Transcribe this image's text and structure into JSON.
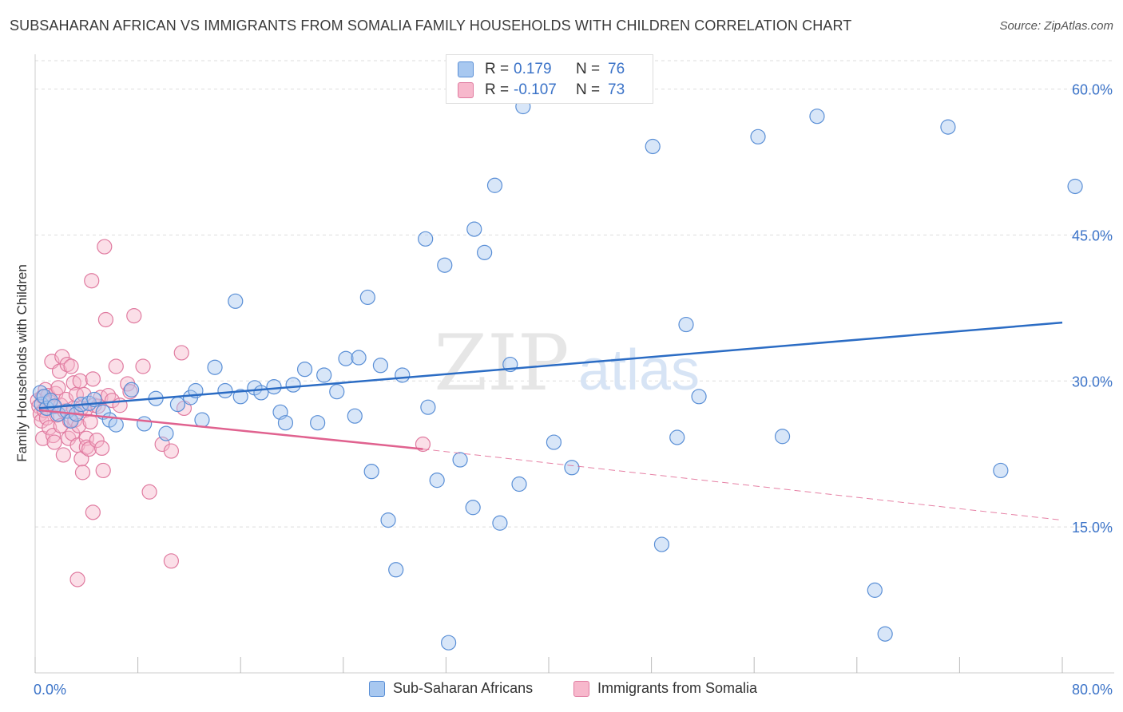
{
  "title": "SUBSAHARAN AFRICAN VS IMMIGRANTS FROM SOMALIA FAMILY HOUSEHOLDS WITH CHILDREN CORRELATION CHART",
  "source": "Source: ZipAtlas.com",
  "watermark": {
    "zip": "ZIP",
    "atlas": "atlas"
  },
  "colors": {
    "blue_fill": "#a8c8f0",
    "blue_stroke": "#5a8fd6",
    "blue_line": "#2b6cc4",
    "pink_fill": "#f7b8cc",
    "pink_stroke": "#e07ba0",
    "pink_line": "#e0628f",
    "accent_text": "#3b73c8"
  },
  "legend_top": {
    "rows": [
      {
        "r_label": "R =",
        "r_value": "0.179",
        "n_label": "N =",
        "n_value": "76"
      },
      {
        "r_label": "R =",
        "r_value": "-0.107",
        "n_label": "N =",
        "n_value": "73"
      }
    ]
  },
  "legend_bottom": {
    "series_a": "Sub-Saharan Africans",
    "series_b": "Immigrants from Somalia"
  },
  "chart_data": {
    "type": "scatter",
    "title": "SUBSAHARAN AFRICAN VS IMMIGRANTS FROM SOMALIA FAMILY HOUSEHOLDS WITH CHILDREN CORRELATION CHART",
    "xlabel": "",
    "ylabel": "Family Households with Children",
    "xlim": [
      0,
      80
    ],
    "ylim": [
      0,
      63
    ],
    "x_tick_labels": [
      "0.0%",
      "80.0%"
    ],
    "y_ticks": [
      15,
      30,
      45,
      60
    ],
    "y_tick_labels": [
      "15.0%",
      "30.0%",
      "45.0%",
      "60.0%"
    ],
    "grid": true,
    "series": [
      {
        "name": "Sub-Saharan Africans",
        "color": "#5a8fd6",
        "trend": {
          "x": [
            0.3,
            80
          ],
          "y": [
            27.2,
            36.0
          ]
        },
        "points": [
          [
            0.4,
            28.8
          ],
          [
            0.5,
            27.6
          ],
          [
            0.7,
            28.4
          ],
          [
            0.9,
            27.2
          ],
          [
            1.2,
            28.0
          ],
          [
            1.5,
            27.4
          ],
          [
            1.8,
            26.6
          ],
          [
            2.5,
            26.9
          ],
          [
            2.8,
            25.9
          ],
          [
            3.2,
            26.6
          ],
          [
            3.6,
            27.6
          ],
          [
            4.2,
            27.7
          ],
          [
            4.6,
            28.1
          ],
          [
            5.3,
            26.8
          ],
          [
            5.8,
            26.0
          ],
          [
            6.3,
            25.5
          ],
          [
            7.5,
            29.1
          ],
          [
            8.5,
            25.6
          ],
          [
            9.4,
            28.2
          ],
          [
            10.2,
            24.6
          ],
          [
            11.1,
            27.6
          ],
          [
            12.1,
            28.3
          ],
          [
            12.5,
            29.0
          ],
          [
            13.0,
            26.0
          ],
          [
            14.0,
            31.4
          ],
          [
            14.8,
            29.0
          ],
          [
            15.6,
            38.2
          ],
          [
            16.0,
            28.4
          ],
          [
            17.1,
            29.3
          ],
          [
            17.6,
            28.8
          ],
          [
            18.6,
            29.4
          ],
          [
            19.1,
            26.8
          ],
          [
            19.5,
            25.7
          ],
          [
            20.1,
            29.6
          ],
          [
            21.0,
            31.2
          ],
          [
            22.0,
            25.7
          ],
          [
            22.5,
            30.6
          ],
          [
            23.5,
            28.9
          ],
          [
            24.2,
            32.3
          ],
          [
            24.9,
            26.4
          ],
          [
            25.2,
            32.4
          ],
          [
            25.9,
            38.6
          ],
          [
            26.2,
            20.7
          ],
          [
            26.9,
            31.6
          ],
          [
            27.5,
            15.7
          ],
          [
            28.1,
            10.6
          ],
          [
            28.6,
            30.6
          ],
          [
            30.4,
            44.6
          ],
          [
            30.6,
            27.3
          ],
          [
            31.3,
            19.8
          ],
          [
            31.9,
            41.9
          ],
          [
            32.2,
            3.1
          ],
          [
            33.1,
            21.9
          ],
          [
            34.1,
            17.0
          ],
          [
            34.2,
            45.6
          ],
          [
            35.0,
            43.2
          ],
          [
            35.8,
            50.1
          ],
          [
            36.2,
            15.4
          ],
          [
            37.0,
            31.7
          ],
          [
            37.7,
            19.4
          ],
          [
            38.0,
            58.2
          ],
          [
            40.4,
            23.7
          ],
          [
            41.8,
            21.1
          ],
          [
            48.1,
            54.1
          ],
          [
            48.8,
            13.2
          ],
          [
            50.0,
            24.2
          ],
          [
            50.7,
            35.8
          ],
          [
            51.7,
            28.4
          ],
          [
            56.3,
            55.1
          ],
          [
            58.2,
            24.3
          ],
          [
            60.9,
            57.2
          ],
          [
            65.4,
            8.5
          ],
          [
            66.2,
            4.0
          ],
          [
            71.1,
            56.1
          ],
          [
            75.2,
            20.8
          ],
          [
            81.0,
            50.0
          ]
        ]
      },
      {
        "name": "Immigrants from Somalia",
        "color": "#e07ba0",
        "trend": {
          "x": [
            0.3,
            30.2
          ],
          "y": [
            27.0,
            23.0
          ]
        },
        "trend_dashed": {
          "x": [
            30.2,
            80
          ],
          "y": [
            23.0,
            15.7
          ]
        },
        "points": [
          [
            0.2,
            28.0
          ],
          [
            0.3,
            27.4
          ],
          [
            0.4,
            26.6
          ],
          [
            0.5,
            25.9
          ],
          [
            0.6,
            28.4
          ],
          [
            0.6,
            24.1
          ],
          [
            0.7,
            27.0
          ],
          [
            0.8,
            29.1
          ],
          [
            0.9,
            26.2
          ],
          [
            1.0,
            28.5
          ],
          [
            1.1,
            25.2
          ],
          [
            1.2,
            27.8
          ],
          [
            1.3,
            32.0
          ],
          [
            1.4,
            24.4
          ],
          [
            1.5,
            23.7
          ],
          [
            1.6,
            28.7
          ],
          [
            1.7,
            26.5
          ],
          [
            1.8,
            29.3
          ],
          [
            1.9,
            31.0
          ],
          [
            2.0,
            25.4
          ],
          [
            2.0,
            27.5
          ],
          [
            2.1,
            32.5
          ],
          [
            2.2,
            22.4
          ],
          [
            2.3,
            26.9
          ],
          [
            2.4,
            28.1
          ],
          [
            2.5,
            31.7
          ],
          [
            2.6,
            24.1
          ],
          [
            2.7,
            25.9
          ],
          [
            2.8,
            31.5
          ],
          [
            2.9,
            24.6
          ],
          [
            3.0,
            27.2
          ],
          [
            3.0,
            29.8
          ],
          [
            3.1,
            26.0
          ],
          [
            3.2,
            28.6
          ],
          [
            3.3,
            23.4
          ],
          [
            3.3,
            9.6
          ],
          [
            3.4,
            25.4
          ],
          [
            3.5,
            30.0
          ],
          [
            3.6,
            27.2
          ],
          [
            3.6,
            22.0
          ],
          [
            3.7,
            20.6
          ],
          [
            3.8,
            28.6
          ],
          [
            3.9,
            27.0
          ],
          [
            4.0,
            24.1
          ],
          [
            4.0,
            23.2
          ],
          [
            4.2,
            23.0
          ],
          [
            4.3,
            25.8
          ],
          [
            4.4,
            40.3
          ],
          [
            4.5,
            30.2
          ],
          [
            4.5,
            16.5
          ],
          [
            4.6,
            27.5
          ],
          [
            4.8,
            23.9
          ],
          [
            4.9,
            27.4
          ],
          [
            5.1,
            28.3
          ],
          [
            5.2,
            23.1
          ],
          [
            5.3,
            20.8
          ],
          [
            5.4,
            43.8
          ],
          [
            5.5,
            36.3
          ],
          [
            5.7,
            28.5
          ],
          [
            6.0,
            28.0
          ],
          [
            6.3,
            31.5
          ],
          [
            6.6,
            27.5
          ],
          [
            7.2,
            29.7
          ],
          [
            7.4,
            28.9
          ],
          [
            7.7,
            36.7
          ],
          [
            8.4,
            31.5
          ],
          [
            8.9,
            18.6
          ],
          [
            9.9,
            23.5
          ],
          [
            10.6,
            11.5
          ],
          [
            10.6,
            22.8
          ],
          [
            11.4,
            32.9
          ],
          [
            11.6,
            27.2
          ],
          [
            30.2,
            23.5
          ]
        ]
      }
    ]
  }
}
